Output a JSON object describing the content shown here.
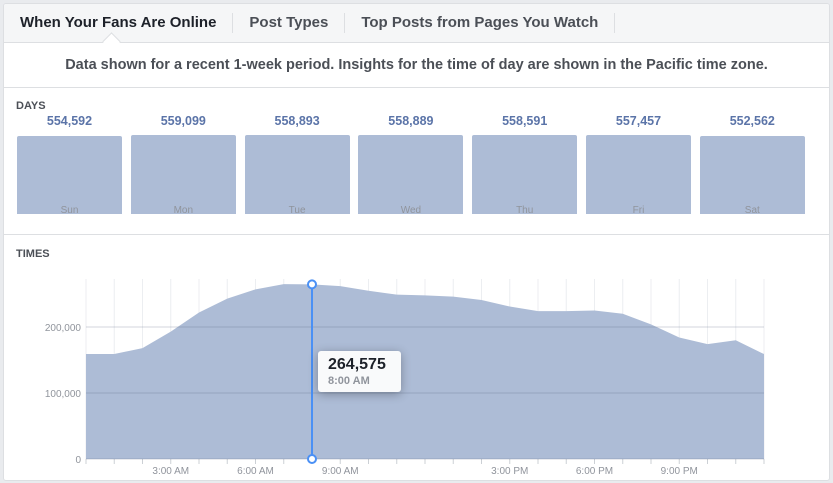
{
  "tabs": [
    {
      "label": "When Your Fans Are Online",
      "active": true
    },
    {
      "label": "Post Types"
    },
    {
      "label": "Top Posts from Pages You Watch"
    }
  ],
  "info": "Data shown for a recent 1-week period. Insights for the time of day are shown in the Pacific time zone.",
  "days_label": "DAYS",
  "times_label": "TIMES",
  "colors": {
    "fill": "#adbcd6",
    "value_text": "#5b74a8",
    "cursor": "#4a90f5"
  },
  "chart_data": [
    {
      "type": "bar",
      "title": "DAYS",
      "categories": [
        "Sun",
        "Mon",
        "Tue",
        "Wed",
        "Thu",
        "Fri",
        "Sat"
      ],
      "values": [
        554592,
        559099,
        558893,
        558889,
        558591,
        557457,
        552562
      ],
      "value_labels": [
        "554,592",
        "559,099",
        "558,893",
        "558,889",
        "558,591",
        "557,457",
        "552,562"
      ]
    },
    {
      "type": "area",
      "title": "TIMES",
      "x": [
        0,
        1,
        2,
        3,
        4,
        5,
        6,
        7,
        8,
        9,
        10,
        11,
        12,
        13,
        14,
        15,
        16,
        17,
        18,
        19,
        20,
        21,
        22,
        23,
        24
      ],
      "values": [
        159000,
        159000,
        168000,
        193000,
        222000,
        243000,
        257000,
        265000,
        264575,
        262000,
        255000,
        249000,
        248000,
        246000,
        241000,
        231000,
        224000,
        224000,
        225000,
        220000,
        204000,
        184000,
        174000,
        180000,
        159000
      ],
      "xlim": [
        0,
        24
      ],
      "ylim": [
        0,
        270000
      ],
      "y_ticks": [
        "0",
        "100,000",
        "200,000"
      ],
      "x_ticks": [
        {
          "hour": 3,
          "label": "3:00 AM"
        },
        {
          "hour": 6,
          "label": "6:00 AM"
        },
        {
          "hour": 9,
          "label": "9:00 AM"
        },
        {
          "hour": 15,
          "label": "3:00 PM"
        },
        {
          "hour": 18,
          "label": "6:00 PM"
        },
        {
          "hour": 21,
          "label": "9:00 PM"
        }
      ],
      "grid": true,
      "tooltip": {
        "hour": 8,
        "value": "264,575",
        "time": "8:00 AM"
      }
    }
  ]
}
